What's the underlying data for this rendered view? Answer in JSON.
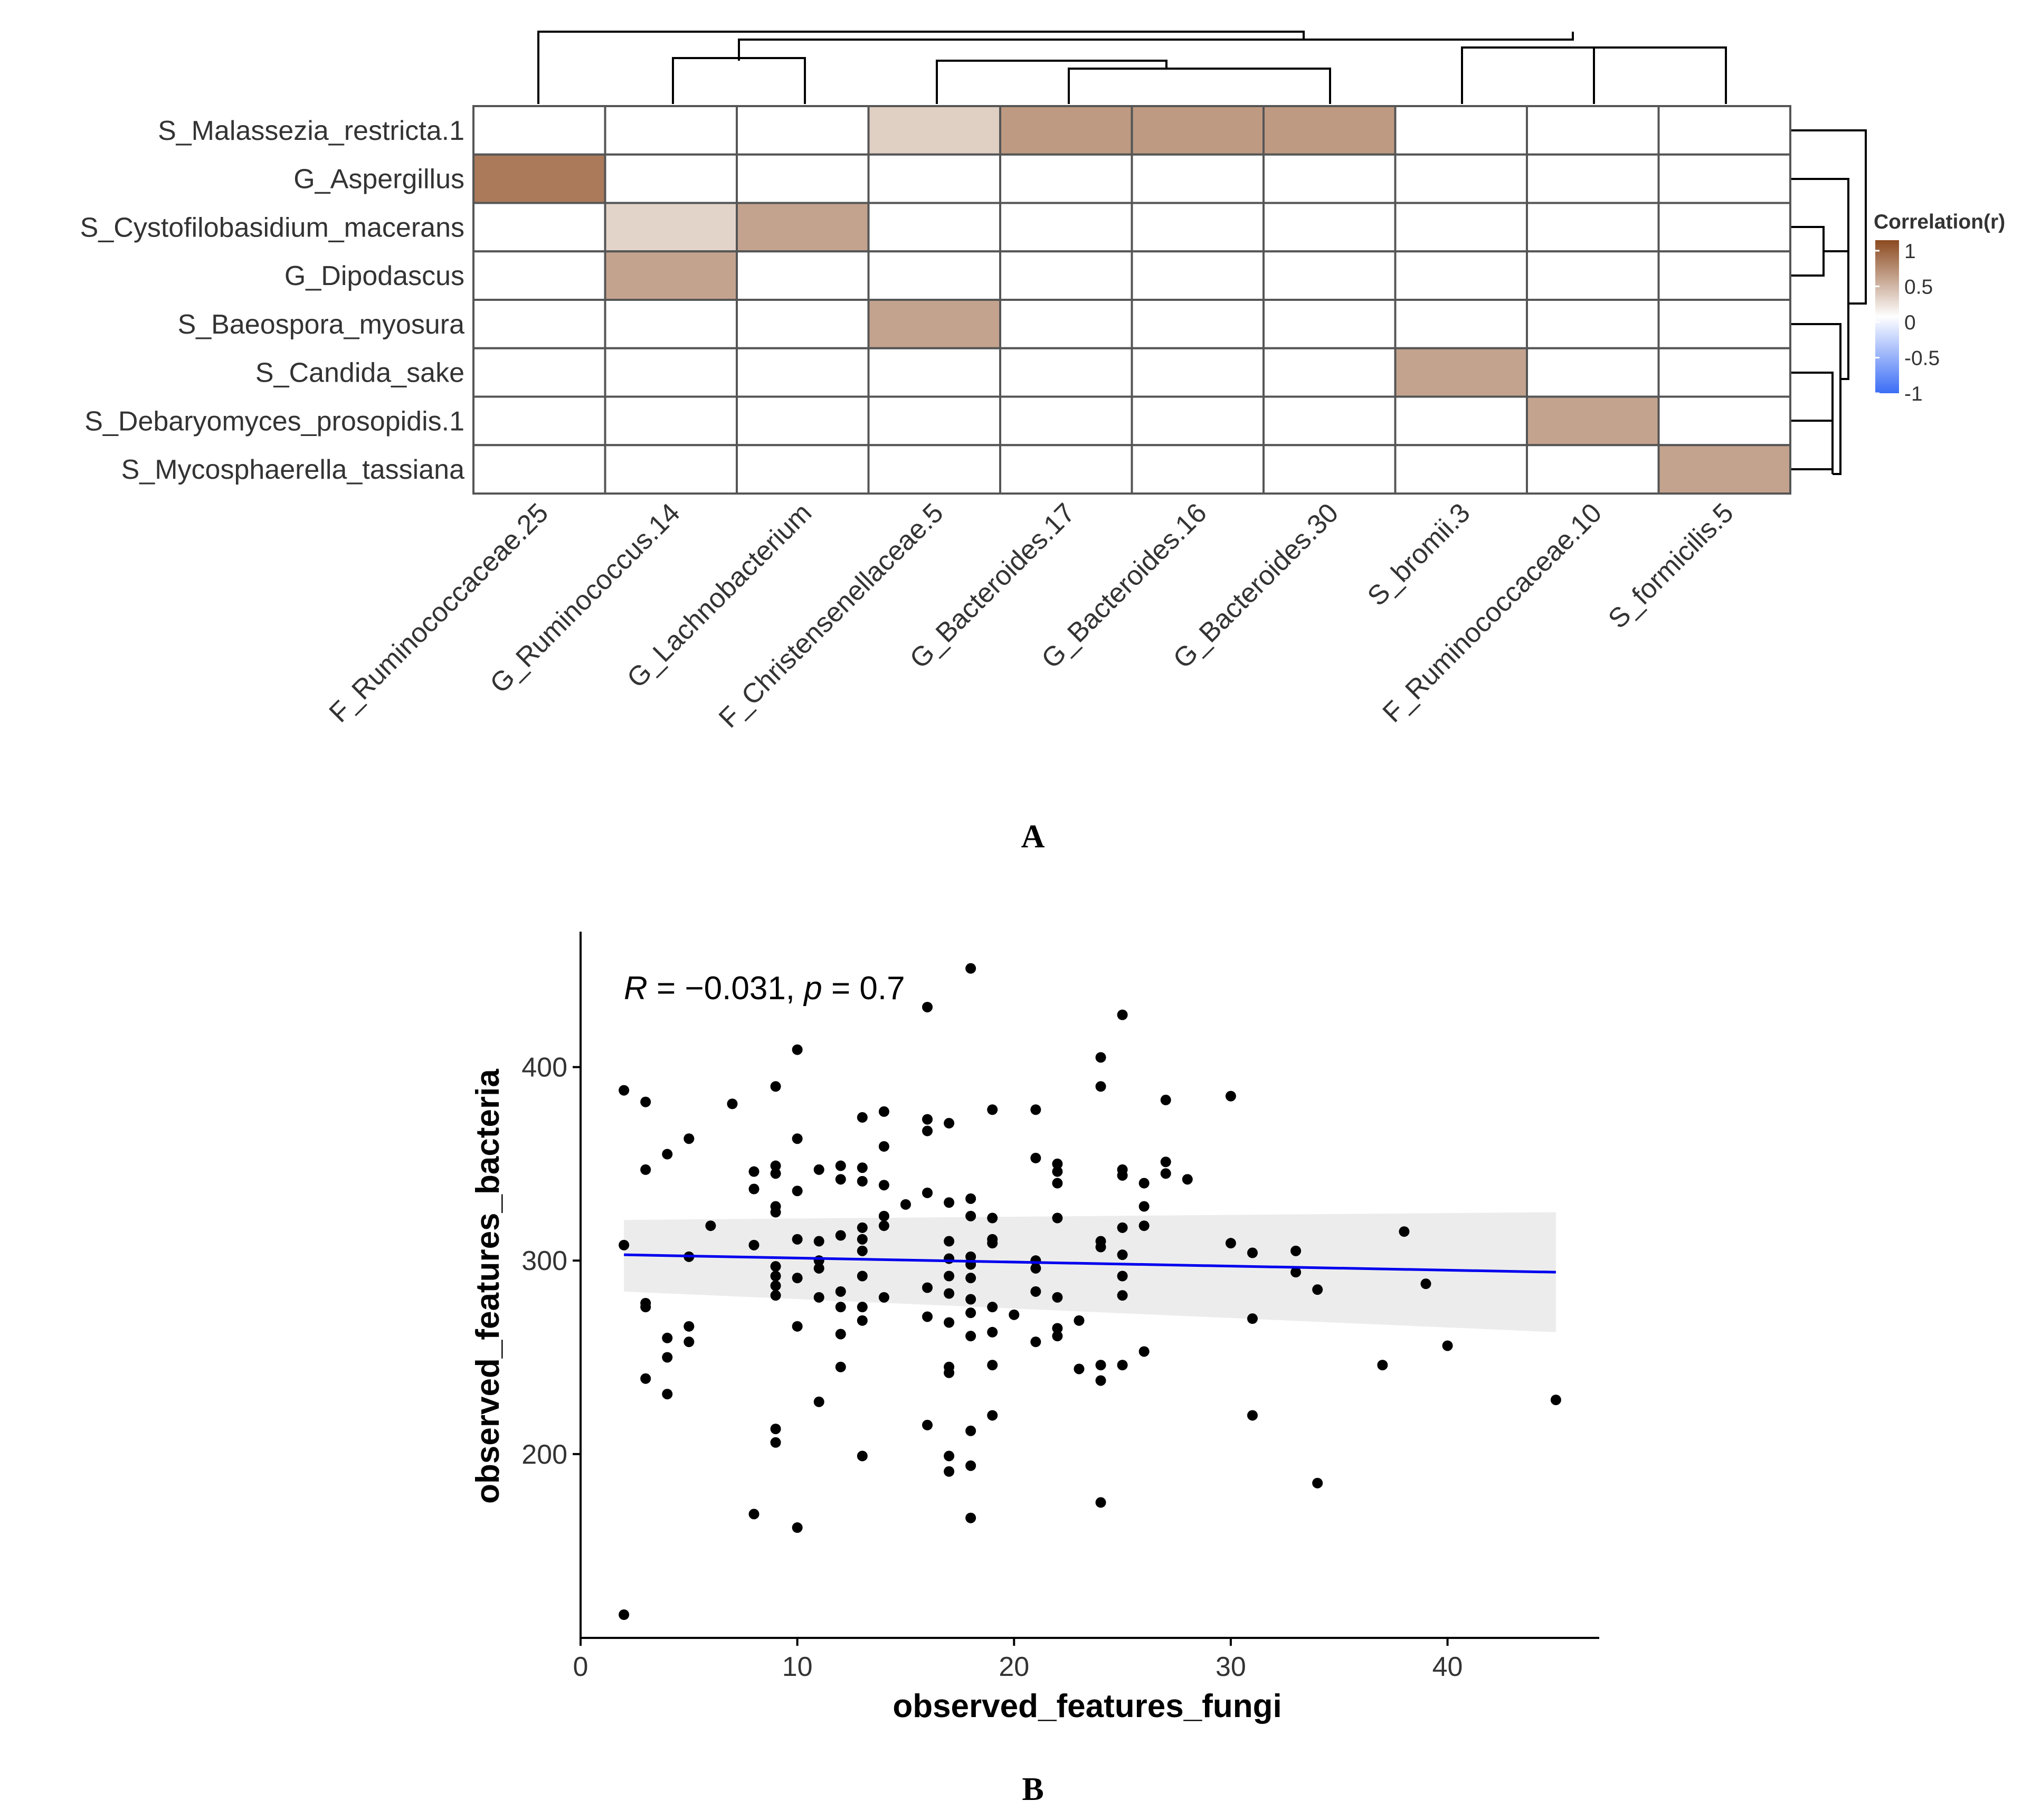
{
  "panel_a_label": "A",
  "panel_b_label": "B",
  "chart_data": [
    {
      "type": "heatmap",
      "title": "",
      "rows": [
        "S_Malassezia_restricta.1",
        "G_Aspergillus",
        "S_Cystofilobasidium_macerans",
        "G_Dipodascus",
        "S_Baeospora_myosura",
        "S_Candida_sake",
        "S_Debaryomyces_prosopidis.1",
        "S_Mycosphaerella_tassiana"
      ],
      "columns": [
        "F_Ruminococcaceae.25",
        "G_Ruminococcus.14",
        "G_Lachnobacterium",
        "F_Christensenellaceae.5",
        "G_Bacteroides.17",
        "G_Bacteroides.16",
        "G_Bacteroides.30",
        "S_bromii.3",
        "F_Ruminococcaceae.10",
        "S_formicilis.5"
      ],
      "values": [
        [
          0,
          0,
          0,
          0.2,
          0.42,
          0.42,
          0.42,
          0,
          0,
          0
        ],
        [
          0.55,
          0,
          0,
          0,
          0,
          0,
          0,
          0,
          0,
          0
        ],
        [
          0,
          0.18,
          0.38,
          0,
          0,
          0,
          0,
          0,
          0,
          0
        ],
        [
          0,
          0.38,
          0,
          0,
          0,
          0,
          0,
          0,
          0,
          0
        ],
        [
          0,
          0,
          0,
          0.38,
          0,
          0,
          0,
          0,
          0,
          0
        ],
        [
          0,
          0,
          0,
          0,
          0,
          0,
          0,
          0.38,
          0,
          0
        ],
        [
          0,
          0,
          0,
          0,
          0,
          0,
          0,
          0,
          0.38,
          0
        ],
        [
          0,
          0,
          0,
          0,
          0,
          0,
          0,
          0,
          0,
          0.38
        ]
      ],
      "legend": {
        "title": "Correlation(r)",
        "ticks": [
          "1",
          "0.5",
          "0",
          "-0.5",
          "-1"
        ],
        "colors": {
          "high": "#8b4a1f",
          "mid": "#ffffff",
          "low": "#3b6ef5"
        }
      },
      "grid_color": "#555555"
    },
    {
      "type": "scatter",
      "title": "",
      "xlabel": "observed_features_fungi",
      "ylabel": "observed_features_bacteria",
      "xlim": [
        0,
        47
      ],
      "ylim": [
        105,
        470
      ],
      "xticks": [
        0,
        10,
        20,
        30,
        40
      ],
      "yticks": [
        200,
        300,
        400
      ],
      "annotation": {
        "R_symbol": "R",
        "R_value": " = −0.031, ",
        "p_symbol": "p",
        "p_value": " = 0.7"
      },
      "regression": {
        "x_start": 2,
        "x_end": 45,
        "y_start": 303,
        "y_end": 294,
        "color": "#0000ee",
        "ci_low": [
          284,
          263
        ],
        "ci_high": [
          321,
          325
        ]
      },
      "points": [
        [
          2,
          308
        ],
        [
          2,
          388
        ],
        [
          2,
          117
        ],
        [
          3,
          347
        ],
        [
          3,
          382
        ],
        [
          3,
          276
        ],
        [
          3,
          278
        ],
        [
          3,
          239
        ],
        [
          4,
          355
        ],
        [
          4,
          260
        ],
        [
          4,
          250
        ],
        [
          4,
          231
        ],
        [
          5,
          363
        ],
        [
          5,
          302
        ],
        [
          5,
          266
        ],
        [
          5,
          258
        ],
        [
          6,
          318
        ],
        [
          7,
          381
        ],
        [
          8,
          346
        ],
        [
          8,
          337
        ],
        [
          8,
          308
        ],
        [
          8,
          169
        ],
        [
          9,
          390
        ],
        [
          9,
          349
        ],
        [
          9,
          345
        ],
        [
          9,
          328
        ],
        [
          9,
          325
        ],
        [
          9,
          297
        ],
        [
          9,
          292
        ],
        [
          9,
          287
        ],
        [
          9,
          282
        ],
        [
          9,
          213
        ],
        [
          9,
          206
        ],
        [
          10,
          409
        ],
        [
          10,
          363
        ],
        [
          10,
          336
        ],
        [
          10,
          311
        ],
        [
          10,
          291
        ],
        [
          10,
          266
        ],
        [
          10,
          162
        ],
        [
          11,
          347
        ],
        [
          11,
          310
        ],
        [
          11,
          300
        ],
        [
          11,
          296
        ],
        [
          11,
          281
        ],
        [
          11,
          227
        ],
        [
          12,
          349
        ],
        [
          12,
          342
        ],
        [
          12,
          313
        ],
        [
          12,
          284
        ],
        [
          12,
          276
        ],
        [
          12,
          262
        ],
        [
          12,
          245
        ],
        [
          13,
          374
        ],
        [
          13,
          348
        ],
        [
          13,
          341
        ],
        [
          13,
          317
        ],
        [
          13,
          311
        ],
        [
          13,
          305
        ],
        [
          13,
          292
        ],
        [
          13,
          276
        ],
        [
          13,
          269
        ],
        [
          13,
          199
        ],
        [
          14,
          377
        ],
        [
          14,
          359
        ],
        [
          14,
          339
        ],
        [
          14,
          323
        ],
        [
          14,
          318
        ],
        [
          14,
          281
        ],
        [
          15,
          329
        ],
        [
          16,
          431
        ],
        [
          16,
          373
        ],
        [
          16,
          367
        ],
        [
          16,
          335
        ],
        [
          16,
          286
        ],
        [
          16,
          271
        ],
        [
          16,
          215
        ],
        [
          17,
          371
        ],
        [
          17,
          330
        ],
        [
          17,
          310
        ],
        [
          17,
          301
        ],
        [
          17,
          292
        ],
        [
          17,
          283
        ],
        [
          17,
          268
        ],
        [
          17,
          245
        ],
        [
          17,
          242
        ],
        [
          17,
          199
        ],
        [
          17,
          191
        ],
        [
          18,
          451
        ],
        [
          18,
          332
        ],
        [
          18,
          323
        ],
        [
          18,
          302
        ],
        [
          18,
          298
        ],
        [
          18,
          291
        ],
        [
          18,
          280
        ],
        [
          18,
          273
        ],
        [
          18,
          261
        ],
        [
          18,
          212
        ],
        [
          18,
          194
        ],
        [
          18,
          167
        ],
        [
          19,
          378
        ],
        [
          19,
          322
        ],
        [
          19,
          311
        ],
        [
          19,
          309
        ],
        [
          19,
          276
        ],
        [
          19,
          263
        ],
        [
          19,
          246
        ],
        [
          19,
          220
        ],
        [
          20,
          272
        ],
        [
          21,
          378
        ],
        [
          21,
          353
        ],
        [
          21,
          300
        ],
        [
          21,
          296
        ],
        [
          21,
          284
        ],
        [
          21,
          258
        ],
        [
          22,
          350
        ],
        [
          22,
          346
        ],
        [
          22,
          340
        ],
        [
          22,
          322
        ],
        [
          22,
          281
        ],
        [
          22,
          265
        ],
        [
          22,
          261
        ],
        [
          23,
          269
        ],
        [
          23,
          244
        ],
        [
          24,
          405
        ],
        [
          24,
          390
        ],
        [
          24,
          310
        ],
        [
          24,
          307
        ],
        [
          24,
          246
        ],
        [
          24,
          238
        ],
        [
          24,
          175
        ],
        [
          25,
          427
        ],
        [
          25,
          347
        ],
        [
          25,
          344
        ],
        [
          25,
          317
        ],
        [
          25,
          303
        ],
        [
          25,
          292
        ],
        [
          25,
          282
        ],
        [
          25,
          246
        ],
        [
          26,
          340
        ],
        [
          26,
          328
        ],
        [
          26,
          318
        ],
        [
          26,
          253
        ],
        [
          27,
          383
        ],
        [
          27,
          351
        ],
        [
          27,
          345
        ],
        [
          28,
          342
        ],
        [
          30,
          385
        ],
        [
          30,
          309
        ],
        [
          31,
          304
        ],
        [
          31,
          270
        ],
        [
          31,
          220
        ],
        [
          33,
          305
        ],
        [
          33,
          294
        ],
        [
          34,
          285
        ],
        [
          34,
          185
        ],
        [
          37,
          246
        ],
        [
          38,
          315
        ],
        [
          39,
          288
        ],
        [
          40,
          256
        ],
        [
          45,
          228
        ]
      ]
    }
  ]
}
